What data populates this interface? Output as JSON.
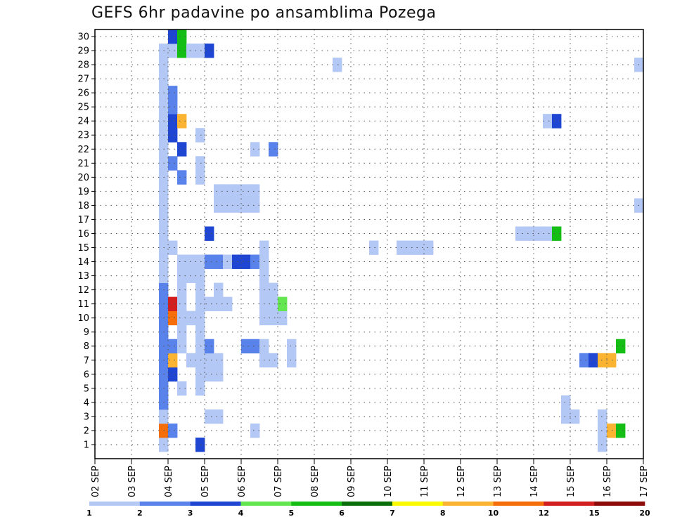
{
  "chart_data": {
    "type": "heatmap",
    "title": "GEFS 6hr padavine po ansamblima Pozega",
    "xlabel": "",
    "ylabel": "",
    "x_ticks": [
      "02 SEP",
      "03 SEP",
      "04 SEP",
      "05 SEP",
      "06 SEP",
      "07 SEP",
      "08 SEP",
      "09 SEP",
      "10 SEP",
      "11 SEP",
      "12 SEP",
      "13 SEP",
      "14 SEP",
      "15 SEP",
      "16 SEP",
      "17 SEP"
    ],
    "y_ticks": [
      "1",
      "2",
      "3",
      "4",
      "5",
      "6",
      "7",
      "8",
      "9",
      "10",
      "11",
      "12",
      "13",
      "14",
      "15",
      "16",
      "17",
      "18",
      "19",
      "20",
      "21",
      "22",
      "23",
      "24",
      "25",
      "26",
      "27",
      "28",
      "29",
      "30"
    ],
    "xlim": [
      0,
      60
    ],
    "ylim": [
      0,
      30
    ],
    "grid": true,
    "legend": {
      "placement": "bottom",
      "levels": [
        "1",
        "2",
        "3",
        "4",
        "5",
        "6",
        "7",
        "8",
        "10",
        "12",
        "15",
        "20"
      ],
      "colors": [
        "#b4c8f5",
        "#5a82eb",
        "#1e46d2",
        "#64e650",
        "#14be14",
        "#0a6e0a",
        "#fafa00",
        "#fab432",
        "#f56e0a",
        "#d21e1e",
        "#8c0a0a"
      ]
    },
    "cells": [
      [
        7,
        1,
        0
      ],
      [
        7,
        2,
        8
      ],
      [
        8,
        2,
        1
      ],
      [
        7,
        3,
        0
      ],
      [
        7,
        4,
        1
      ],
      [
        7,
        5,
        1
      ],
      [
        7,
        6,
        1
      ],
      [
        7,
        7,
        1
      ],
      [
        7,
        8,
        1
      ],
      [
        7,
        9,
        1
      ],
      [
        7,
        10,
        1
      ],
      [
        7,
        11,
        1
      ],
      [
        7,
        12,
        1
      ],
      [
        7,
        13,
        0
      ],
      [
        7,
        14,
        0
      ],
      [
        7,
        15,
        0
      ],
      [
        7,
        16,
        0
      ],
      [
        7,
        17,
        0
      ],
      [
        7,
        18,
        0
      ],
      [
        7,
        19,
        0
      ],
      [
        7,
        20,
        0
      ],
      [
        7,
        21,
        0
      ],
      [
        7,
        22,
        0
      ],
      [
        7,
        23,
        0
      ],
      [
        7,
        24,
        0
      ],
      [
        7,
        25,
        0
      ],
      [
        7,
        26,
        0
      ],
      [
        7,
        27,
        0
      ],
      [
        7,
        28,
        0
      ],
      [
        7,
        29,
        0
      ],
      [
        8,
        6,
        2
      ],
      [
        8,
        7,
        7
      ],
      [
        8,
        8,
        1
      ],
      [
        8,
        10,
        8
      ],
      [
        8,
        11,
        9
      ],
      [
        8,
        15,
        0
      ],
      [
        8,
        21,
        1
      ],
      [
        8,
        23,
        2
      ],
      [
        8,
        24,
        2
      ],
      [
        8,
        25,
        1
      ],
      [
        8,
        26,
        1
      ],
      [
        8,
        29,
        0
      ],
      [
        8,
        30,
        2
      ],
      [
        9,
        5,
        0
      ],
      [
        9,
        8,
        0
      ],
      [
        9,
        9,
        0
      ],
      [
        9,
        10,
        0
      ],
      [
        9,
        11,
        0
      ],
      [
        9,
        12,
        0
      ],
      [
        9,
        13,
        0
      ],
      [
        9,
        14,
        0
      ],
      [
        9,
        20,
        1
      ],
      [
        9,
        22,
        2
      ],
      [
        9,
        24,
        7
      ],
      [
        9,
        29,
        4
      ],
      [
        9,
        30,
        4
      ],
      [
        10,
        7,
        0
      ],
      [
        10,
        10,
        0
      ],
      [
        10,
        13,
        0
      ],
      [
        10,
        14,
        0
      ],
      [
        10,
        29,
        0
      ],
      [
        11,
        1,
        2
      ],
      [
        11,
        5,
        0
      ],
      [
        11,
        6,
        0
      ],
      [
        11,
        7,
        0
      ],
      [
        11,
        8,
        0
      ],
      [
        11,
        9,
        0
      ],
      [
        11,
        10,
        0
      ],
      [
        11,
        11,
        0
      ],
      [
        11,
        12,
        0
      ],
      [
        11,
        13,
        0
      ],
      [
        11,
        14,
        0
      ],
      [
        11,
        20,
        0
      ],
      [
        11,
        21,
        0
      ],
      [
        11,
        23,
        0
      ],
      [
        11,
        29,
        0
      ],
      [
        12,
        3,
        0
      ],
      [
        12,
        6,
        0
      ],
      [
        12,
        7,
        0
      ],
      [
        12,
        8,
        1
      ],
      [
        12,
        11,
        0
      ],
      [
        12,
        14,
        1
      ],
      [
        12,
        16,
        2
      ],
      [
        12,
        29,
        2
      ],
      [
        13,
        3,
        0
      ],
      [
        13,
        6,
        0
      ],
      [
        13,
        7,
        0
      ],
      [
        13,
        11,
        0
      ],
      [
        13,
        12,
        0
      ],
      [
        13,
        14,
        1
      ],
      [
        13,
        18,
        0
      ],
      [
        13,
        19,
        0
      ],
      [
        14,
        11,
        0
      ],
      [
        14,
        14,
        0
      ],
      [
        14,
        18,
        0
      ],
      [
        14,
        19,
        0
      ],
      [
        15,
        14,
        2
      ],
      [
        15,
        18,
        0
      ],
      [
        15,
        19,
        0
      ],
      [
        16,
        8,
        1
      ],
      [
        16,
        14,
        2
      ],
      [
        16,
        18,
        0
      ],
      [
        16,
        19,
        0
      ],
      [
        17,
        2,
        0
      ],
      [
        17,
        8,
        1
      ],
      [
        17,
        14,
        1
      ],
      [
        17,
        18,
        0
      ],
      [
        17,
        19,
        0
      ],
      [
        17,
        22,
        0
      ],
      [
        18,
        7,
        0
      ],
      [
        18,
        8,
        0
      ],
      [
        18,
        10,
        0
      ],
      [
        18,
        11,
        0
      ],
      [
        18,
        12,
        0
      ],
      [
        18,
        13,
        0
      ],
      [
        18,
        14,
        0
      ],
      [
        18,
        15,
        0
      ],
      [
        19,
        7,
        0
      ],
      [
        19,
        10,
        0
      ],
      [
        19,
        11,
        0
      ],
      [
        19,
        12,
        0
      ],
      [
        19,
        22,
        1
      ],
      [
        20,
        10,
        0
      ],
      [
        20,
        11,
        3
      ],
      [
        21,
        7,
        0
      ],
      [
        21,
        8,
        0
      ],
      [
        26,
        28,
        0
      ],
      [
        30,
        15,
        0
      ],
      [
        33,
        15,
        0
      ],
      [
        34,
        15,
        0
      ],
      [
        35,
        15,
        0
      ],
      [
        36,
        15,
        0
      ],
      [
        46,
        16,
        0
      ],
      [
        47,
        16,
        0
      ],
      [
        48,
        16,
        0
      ],
      [
        49,
        16,
        0
      ],
      [
        49,
        24,
        0
      ],
      [
        50,
        24,
        2
      ],
      [
        50,
        16,
        4
      ],
      [
        51,
        3,
        0
      ],
      [
        52,
        3,
        0
      ],
      [
        51,
        4,
        0
      ],
      [
        53,
        7,
        1
      ],
      [
        54,
        7,
        2
      ],
      [
        55,
        7,
        7
      ],
      [
        56,
        7,
        7
      ],
      [
        55,
        2,
        0
      ],
      [
        56,
        2,
        7
      ],
      [
        57,
        2,
        4
      ],
      [
        55,
        3,
        0
      ],
      [
        57,
        8,
        4
      ],
      [
        59,
        18,
        0
      ],
      [
        59,
        28,
        0
      ],
      [
        55,
        1,
        0
      ]
    ]
  }
}
